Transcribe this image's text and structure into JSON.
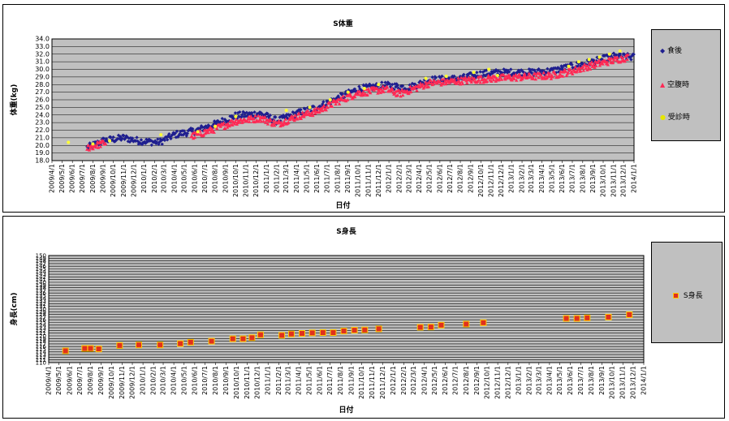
{
  "date_ticks": [
    "2009/4/1",
    "2009/5/1",
    "2009/6/1",
    "2009/7/1",
    "2009/8/1",
    "2009/9/1",
    "2009/10/1",
    "2009/11/1",
    "2009/12/1",
    "2010/1/1",
    "2010/2/1",
    "2010/3/1",
    "2010/4/1",
    "2010/5/1",
    "2010/6/1",
    "2010/7/1",
    "2010/8/1",
    "2010/9/1",
    "2010/10/1",
    "2010/11/1",
    "2010/12/1",
    "2011/1/1",
    "2011/2/1",
    "2011/3/1",
    "2011/4/1",
    "2011/5/1",
    "2011/6/1",
    "2011/7/1",
    "2011/8/1",
    "2011/9/1",
    "2011/10/1",
    "2011/11/1",
    "2011/12/1",
    "2012/1/1",
    "2012/2/1",
    "2012/3/1",
    "2012/4/1",
    "2012/5/1",
    "2012/6/1",
    "2012/7/1",
    "2012/8/1",
    "2012/9/1",
    "2012/10/1",
    "2012/11/1",
    "2012/12/1",
    "2013/1/1",
    "2013/2/1",
    "2013/3/1",
    "2013/4/1",
    "2013/5/1",
    "2013/6/1",
    "2013/7/1",
    "2013/8/1",
    "2013/9/1",
    "2013/10/1",
    "2013/11/1",
    "2013/12/1",
    "2014/1/1"
  ],
  "colors": {
    "blue": "#1f1f8f",
    "red": "#ff2a55",
    "yellow": "#ffff33",
    "plot_bg": "#c0c0c0",
    "square_fill": "#e0301e",
    "square_edge": "#ffcc00"
  },
  "chart_data": [
    {
      "type": "scatter",
      "title": "S体重",
      "xlabel": "日付",
      "ylabel": "体重(kg)",
      "ylim": [
        18.0,
        34.0
      ],
      "yticks": [
        "18.0",
        "19.0",
        "20.0",
        "21.0",
        "22.0",
        "23.0",
        "24.0",
        "25.0",
        "26.0",
        "27.0",
        "28.0",
        "29.0",
        "30.0",
        "31.0",
        "32.0",
        "33.0",
        "34.0"
      ],
      "xlim": [
        "2009/4/1",
        "2014/1/1"
      ],
      "grid": true,
      "legend_position": "right",
      "series": [
        {
          "name": "食後",
          "marker": "diamond",
          "color": "#1f1f8f",
          "trend": [
            [
              "2009/7/15",
              19.7
            ],
            [
              "2009/9/1",
              20.6
            ],
            [
              "2009/11/1",
              21.0
            ],
            [
              "2009/12/15",
              20.6
            ],
            [
              "2010/2/15",
              20.4
            ],
            [
              "2010/4/1",
              21.4
            ],
            [
              "2010/6/1",
              21.9
            ],
            [
              "2010/8/1",
              22.8
            ],
            [
              "2010/10/1",
              23.9
            ],
            [
              "2010/12/15",
              24.2
            ],
            [
              "2011/2/1",
              23.2
            ],
            [
              "2011/4/1",
              24.2
            ],
            [
              "2011/6/1",
              25.0
            ],
            [
              "2011/8/1",
              26.2
            ],
            [
              "2011/10/1",
              27.4
            ],
            [
              "2011/12/20",
              27.9
            ],
            [
              "2012/3/1",
              27.6
            ],
            [
              "2012/5/1",
              28.6
            ],
            [
              "2012/8/1",
              28.8
            ],
            [
              "2012/10/1",
              29.4
            ],
            [
              "2012/12/1",
              29.6
            ],
            [
              "2013/3/1",
              29.6
            ],
            [
              "2013/5/1",
              29.8
            ],
            [
              "2013/7/1",
              30.4
            ],
            [
              "2013/9/1",
              31.0
            ],
            [
              "2013/11/1",
              31.7
            ],
            [
              "2014/1/1",
              31.6
            ]
          ],
          "spread": 0.45
        },
        {
          "name": "空腹時",
          "marker": "triangle",
          "color": "#ff2a55",
          "trend": [
            [
              "2009/7/15",
              19.7
            ],
            [
              "2009/9/1",
              20.3
            ],
            [
              "2010/6/1",
              21.3
            ],
            [
              "2010/8/1",
              22.2
            ],
            [
              "2010/10/1",
              23.2
            ],
            [
              "2010/12/15",
              23.6
            ],
            [
              "2011/2/1",
              22.8
            ],
            [
              "2011/4/1",
              23.8
            ],
            [
              "2011/6/1",
              24.5
            ],
            [
              "2011/8/1",
              25.8
            ],
            [
              "2011/10/1",
              26.9
            ],
            [
              "2011/12/20",
              27.4
            ],
            [
              "2012/2/1",
              26.8
            ],
            [
              "2012/5/1",
              28.2
            ],
            [
              "2012/8/1",
              28.5
            ],
            [
              "2012/11/1",
              28.8
            ],
            [
              "2013/2/1",
              29.0
            ],
            [
              "2013/5/1",
              29.2
            ],
            [
              "2013/7/1",
              29.8
            ],
            [
              "2013/9/1",
              30.6
            ],
            [
              "2013/11/1",
              31.2
            ],
            [
              "2013/12/15",
              31.6
            ]
          ],
          "spread": 0.45
        },
        {
          "name": "受診時",
          "marker": "circle",
          "color": "#ffff33",
          "points": [
            [
              "2009/5/20",
              20.4
            ],
            [
              "2009/8/1",
              20.2
            ],
            [
              "2009/9/20",
              20.6
            ],
            [
              "2010/2/20",
              21.4
            ],
            [
              "2010/6/10",
              21.8
            ],
            [
              "2010/8/1",
              22.5
            ],
            [
              "2010/10/1",
              23.8
            ],
            [
              "2011/3/1",
              24.6
            ],
            [
              "2011/5/10",
              25.0
            ],
            [
              "2011/7/10",
              26.0
            ],
            [
              "2011/9/1",
              27.0
            ],
            [
              "2011/10/20",
              27.5
            ],
            [
              "2011/12/1",
              28.0
            ],
            [
              "2012/4/20",
              28.8
            ],
            [
              "2012/6/20",
              29.1
            ],
            [
              "2012/9/10",
              29.6
            ],
            [
              "2012/10/25",
              30.0
            ],
            [
              "2012/11/20",
              29.2
            ],
            [
              "2013/6/20",
              30.4
            ],
            [
              "2013/7/20",
              31.0
            ],
            [
              "2013/8/20",
              31.3
            ],
            [
              "2013/9/20",
              31.6
            ],
            [
              "2013/10/20",
              32.0
            ],
            [
              "2013/11/20",
              32.4
            ]
          ]
        }
      ]
    },
    {
      "type": "scatter",
      "title": "S身長",
      "xlabel": "日付",
      "ylabel": "身長(cm)",
      "ylim": [
        110,
        150
      ],
      "yticks": [
        "110",
        "111",
        "112",
        "113",
        "114",
        "115",
        "116",
        "117",
        "118",
        "119",
        "120",
        "121",
        "122",
        "123",
        "124",
        "125",
        "126",
        "127",
        "128",
        "129",
        "130",
        "131",
        "132",
        "133",
        "134",
        "135",
        "136",
        "137",
        "138",
        "139",
        "140",
        "141",
        "142",
        "143",
        "144",
        "145",
        "146",
        "147",
        "148",
        "149",
        "150"
      ],
      "xlim": [
        "2009/4/1",
        "2014/1/1"
      ],
      "grid": true,
      "legend_position": "right",
      "series": [
        {
          "name": "S身長",
          "marker": "square",
          "points": [
            [
              "2009/5/20",
              114.4
            ],
            [
              "2009/7/15",
              115.3
            ],
            [
              "2009/8/1",
              115.3
            ],
            [
              "2009/8/25",
              115.1
            ],
            [
              "2009/10/25",
              116.4
            ],
            [
              "2009/12/20",
              116.6
            ],
            [
              "2010/2/20",
              116.6
            ],
            [
              "2010/4/20",
              117.1
            ],
            [
              "2010/5/20",
              117.6
            ],
            [
              "2010/7/20",
              118.0
            ],
            [
              "2010/9/20",
              118.9
            ],
            [
              "2010/10/20",
              118.9
            ],
            [
              "2010/11/15",
              119.3
            ],
            [
              "2010/12/10",
              120.4
            ],
            [
              "2011/2/10",
              120.2
            ],
            [
              "2011/3/10",
              120.7
            ],
            [
              "2011/4/10",
              120.9
            ],
            [
              "2011/5/10",
              121.1
            ],
            [
              "2011/6/10",
              121.2
            ],
            [
              "2011/7/10",
              121.2
            ],
            [
              "2011/8/10",
              121.8
            ],
            [
              "2011/9/10",
              122.1
            ],
            [
              "2011/10/10",
              122.2
            ],
            [
              "2011/11/20",
              122.6
            ],
            [
              "2012/3/20",
              123.2
            ],
            [
              "2012/4/20",
              123.3
            ],
            [
              "2012/5/20",
              124.0
            ],
            [
              "2012/8/1",
              124.4
            ],
            [
              "2012/9/20",
              124.9
            ],
            [
              "2013/5/20",
              126.5
            ],
            [
              "2013/6/20",
              126.5
            ],
            [
              "2013/7/20",
              126.7
            ],
            [
              "2013/9/20",
              127.0
            ],
            [
              "2013/11/20",
              127.9
            ]
          ]
        }
      ]
    }
  ]
}
